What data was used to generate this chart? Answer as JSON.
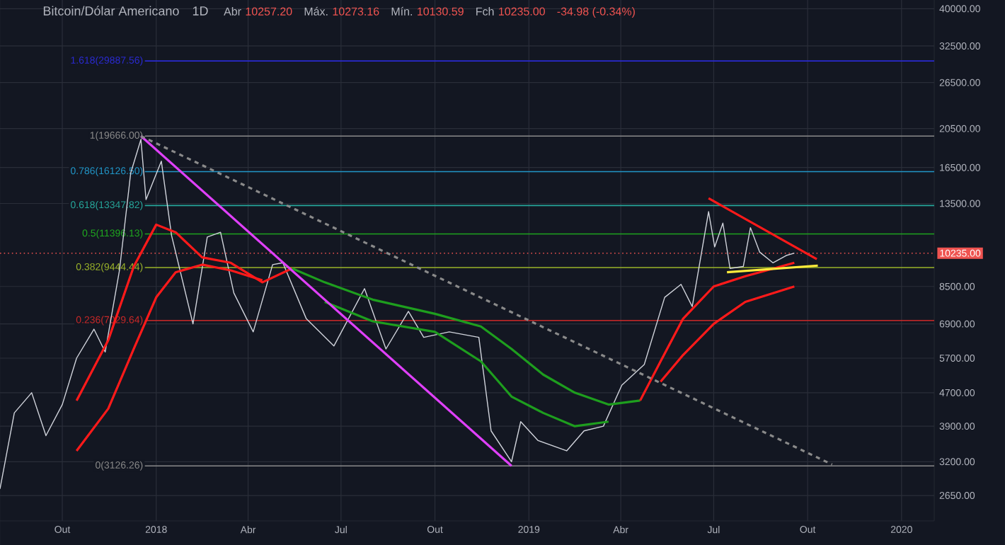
{
  "chart_data": {
    "type": "line",
    "title": "Bitcoin/Dólar Americano",
    "subtitle": "1D",
    "annotations": [
      "Abr",
      "10257.20",
      "Máx.",
      "10273.16",
      "Mín.",
      "10130.59",
      "Fch",
      "10235.00",
      "-34.98 (-0.34%)"
    ],
    "log": "y",
    "grid": true,
    "marker": "none",
    "xlim": [
      "2017-08-01",
      "2020-02-02"
    ],
    "ylim": [
      2300,
      42000
    ],
    "xticks": [
      {
        "value": "2017-10-01",
        "label": "Out"
      },
      {
        "value": "2018-01-01",
        "label": "2018"
      },
      {
        "value": "2018-04-01",
        "label": "Abr"
      },
      {
        "value": "2018-07-01",
        "label": "Jul"
      },
      {
        "value": "2018-10-01",
        "label": "Out"
      },
      {
        "value": "2019-01-01",
        "label": "2019"
      },
      {
        "value": "2019-04-01",
        "label": "Abr"
      },
      {
        "value": "2019-07-01",
        "label": "Jul"
      },
      {
        "value": "2019-10-01",
        "label": "Out"
      },
      {
        "value": "2020-01-01",
        "label": "2020"
      }
    ],
    "yticks": [
      {
        "value": 2650,
        "label": "2650.00"
      },
      {
        "value": 3200,
        "label": "3200.00"
      },
      {
        "value": 3900,
        "label": "3900.00"
      },
      {
        "value": 4700,
        "label": "4700.00"
      },
      {
        "value": 5700,
        "label": "5700.00"
      },
      {
        "value": 6900,
        "label": "6900.00"
      },
      {
        "value": 8500,
        "label": "8500.00"
      },
      {
        "value": 13500,
        "label": "13500.00"
      },
      {
        "value": 16500,
        "label": "16500.00"
      },
      {
        "value": 20500,
        "label": "20500.00"
      },
      {
        "value": 26500,
        "label": "26500.00"
      },
      {
        "value": 32500,
        "label": "32500.00"
      },
      {
        "value": 40000,
        "label": "40000.00"
      }
    ],
    "ref_lines": [
      {
        "axis": "y",
        "value": 29887.56,
        "label": "1.618(29887.56)",
        "color": "#2a2ad0"
      },
      {
        "axis": "y",
        "value": 19666.0,
        "label": "1(19666.00)",
        "color": "#8a8a8a"
      },
      {
        "axis": "y",
        "value": 16126.5,
        "label": "0.786(16126.50)",
        "color": "#2196c8"
      },
      {
        "axis": "y",
        "value": 13347.82,
        "label": "0.618(13347.82)",
        "color": "#26a69a"
      },
      {
        "axis": "y",
        "value": 11396.13,
        "label": "0.5(11396.13)",
        "color": "#1fa81f"
      },
      {
        "axis": "y",
        "value": 9444.44,
        "label": "0.382(9444.44)",
        "color": "#9bb42a"
      },
      {
        "axis": "y",
        "value": 7029.64,
        "label": "0.236(7029.64)",
        "color": "#c62828"
      },
      {
        "axis": "y",
        "value": 3126.26,
        "label": "0(3126.26)",
        "color": "#8a8a8a"
      },
      {
        "axis": "y",
        "value": 10235.0,
        "label": "10235.00",
        "color": "#ef5350",
        "line_style": "dotted"
      }
    ],
    "series": [
      {
        "color": "#d1d4dc",
        "x": [
          "2017-08-01",
          "2017-08-15",
          "2017-09-01",
          "2017-09-15",
          "2017-10-01",
          "2017-10-15",
          "2017-11-01",
          "2017-11-12",
          "2017-11-26",
          "2017-12-07",
          "2017-12-17",
          "2017-12-22",
          "2018-01-06",
          "2018-01-16",
          "2018-02-06",
          "2018-02-20",
          "2018-03-05",
          "2018-03-18",
          "2018-04-06",
          "2018-04-25",
          "2018-05-05",
          "2018-05-28",
          "2018-06-24",
          "2018-07-24",
          "2018-08-14",
          "2018-09-05",
          "2018-09-20",
          "2018-10-15",
          "2018-11-13",
          "2018-11-25",
          "2018-12-15",
          "2018-12-24",
          "2019-01-10",
          "2019-02-07",
          "2019-02-24",
          "2019-03-15",
          "2019-04-02",
          "2019-04-24",
          "2019-05-14",
          "2019-05-30",
          "2019-06-10",
          "2019-06-26",
          "2019-07-02",
          "2019-07-10",
          "2019-07-17",
          "2019-07-30",
          "2019-08-06",
          "2019-08-15",
          "2019-08-28",
          "2019-09-10",
          "2019-09-18"
        ],
        "values": [
          2750,
          4200,
          4700,
          3700,
          4400,
          5700,
          6700,
          5900,
          9300,
          16000,
          19300,
          13800,
          17100,
          11300,
          6900,
          11200,
          11500,
          8200,
          6600,
          9600,
          9700,
          7100,
          6100,
          8400,
          6000,
          7400,
          6400,
          6600,
          6400,
          3800,
          3200,
          4000,
          3600,
          3400,
          3800,
          3900,
          4900,
          5500,
          8000,
          8600,
          7600,
          12900,
          10600,
          12100,
          9400,
          9500,
          11800,
          10300,
          9700,
          10100,
          10235
        ]
      },
      {
        "color": "#ff1a1a",
        "x": [
          "2017-10-15",
          "2017-11-15",
          "2017-12-10",
          "2018-01-01",
          "2018-01-20",
          "2018-02-15",
          "2018-03-15",
          "2018-04-15",
          "2018-05-14"
        ],
        "values": [
          4500,
          6300,
          9500,
          12000,
          11500,
          10000,
          9700,
          8700,
          9400
        ]
      },
      {
        "color": "#ff1a1a",
        "x": [
          "2017-10-15",
          "2017-11-15",
          "2017-12-10",
          "2018-01-01",
          "2018-01-20",
          "2018-02-15",
          "2018-03-15",
          "2018-04-15"
        ],
        "values": [
          3400,
          4300,
          6000,
          8000,
          9200,
          9600,
          9300,
          8800
        ]
      },
      {
        "color": "#1e9e1e",
        "x": [
          "2018-05-14",
          "2018-06-15",
          "2018-08-01",
          "2018-10-01",
          "2018-11-15",
          "2018-12-15",
          "2019-01-15",
          "2019-02-15",
          "2019-03-20",
          "2019-04-20"
        ],
        "values": [
          9400,
          8700,
          7900,
          7300,
          6800,
          6000,
          5200,
          4700,
          4400,
          4500
        ]
      },
      {
        "color": "#1e9e1e",
        "x": [
          "2018-06-15",
          "2018-08-01",
          "2018-10-01",
          "2018-11-15",
          "2018-12-15",
          "2019-01-15",
          "2019-02-15",
          "2019-03-20"
        ],
        "values": [
          7800,
          7000,
          6600,
          5600,
          4600,
          4200,
          3900,
          4000
        ]
      },
      {
        "color": "#ff1a1a",
        "x": [
          "2019-04-20",
          "2019-05-10",
          "2019-06-01",
          "2019-07-01",
          "2019-08-01",
          "2019-09-18"
        ],
        "values": [
          4500,
          5600,
          7100,
          8500,
          9000,
          9700
        ]
      },
      {
        "color": "#ff1a1a",
        "x": [
          "2019-05-10",
          "2019-06-01",
          "2019-07-01",
          "2019-08-01",
          "2019-09-18"
        ],
        "values": [
          5000,
          5800,
          6900,
          7800,
          8500
        ]
      },
      {
        "color": "#e040fb",
        "x": [
          "2017-12-17",
          "2018-12-15"
        ],
        "values": [
          19666,
          3126
        ]
      },
      {
        "color": "#8a8a8a",
        "line_style": "dashed",
        "x": [
          "2017-12-17",
          "2019-10-25"
        ],
        "values": [
          19666,
          3150
        ]
      },
      {
        "color": "#ff1a1a",
        "x": [
          "2019-06-26",
          "2019-10-10"
        ],
        "values": [
          13900,
          9900
        ]
      },
      {
        "color": "#ffeb3b",
        "x": [
          "2019-07-14",
          "2019-10-11"
        ],
        "values": [
          9200,
          9550
        ]
      }
    ]
  }
}
